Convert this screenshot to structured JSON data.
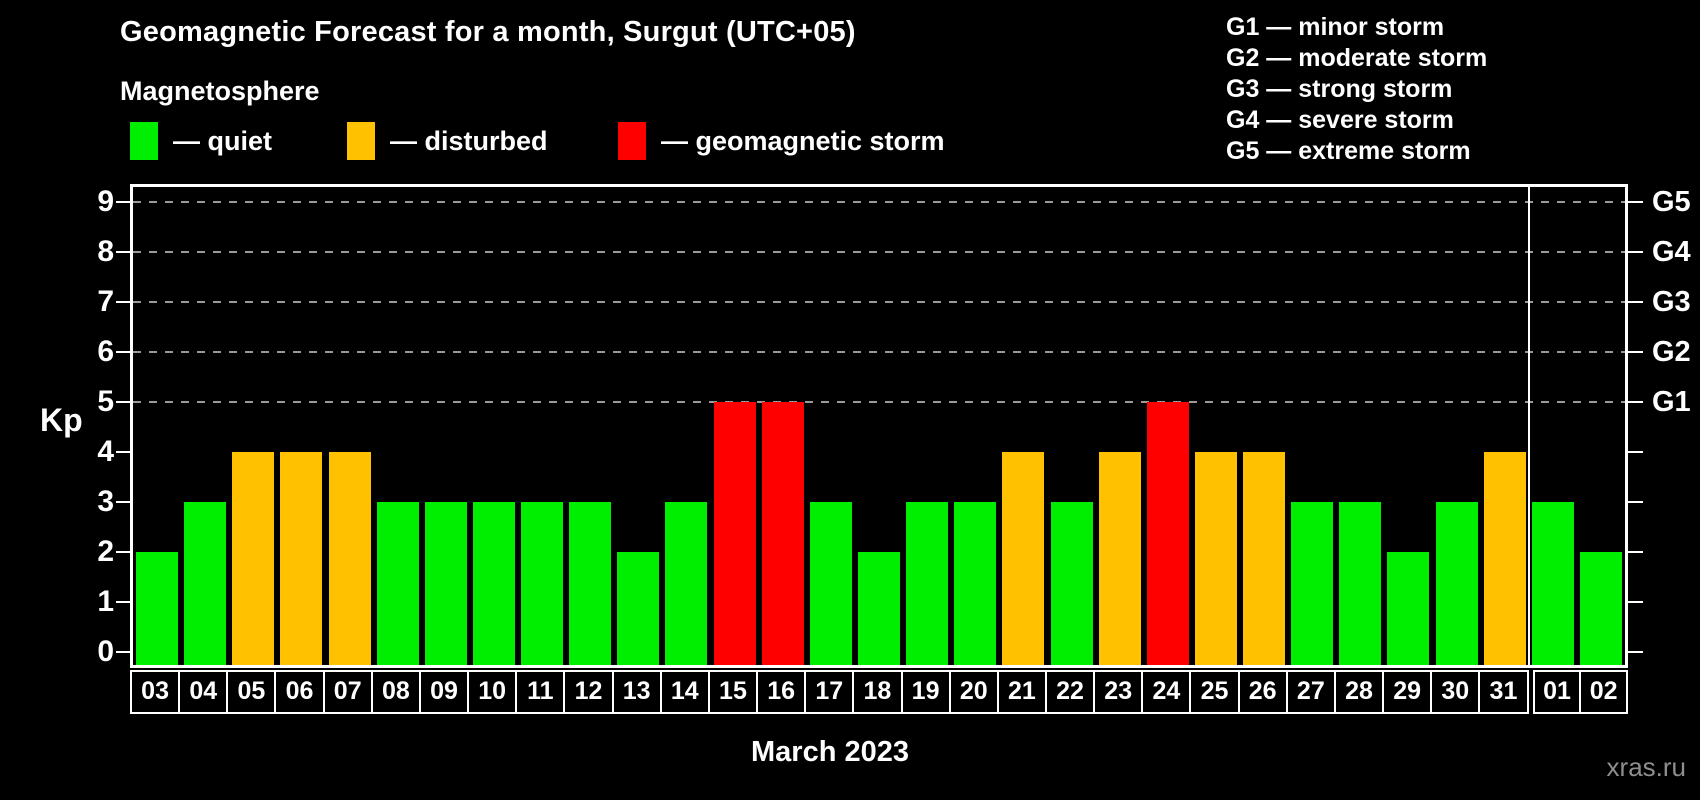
{
  "title": "Geomagnetic Forecast for a month, Surgut (UTC+05)",
  "subtitle": "Magnetosphere",
  "legend": {
    "items": [
      {
        "name": "quiet",
        "label": "— quiet",
        "color": "#00ef00"
      },
      {
        "name": "disturbed",
        "label": "— disturbed",
        "color": "#ffc100"
      },
      {
        "name": "storm",
        "label": "— geomagnetic storm",
        "color": "#ff0000"
      }
    ]
  },
  "g_scale_legend": [
    "G1 — minor storm",
    "G2 — moderate storm",
    "G3 — strong storm",
    "G4 — severe storm",
    "G5 — extreme storm"
  ],
  "watermark": "xras.ru",
  "chart_data": {
    "type": "bar",
    "title": "Geomagnetic Forecast for a month, Surgut (UTC+05)",
    "xlabel": "March 2023",
    "ylabel": "Kp",
    "ylim": [
      0,
      9.4
    ],
    "grid": "dashed horizontal gridlines at Kp 5,6,7,8,9",
    "legend_position": "top-left",
    "categories": [
      "03",
      "04",
      "05",
      "06",
      "07",
      "08",
      "09",
      "10",
      "11",
      "12",
      "13",
      "14",
      "15",
      "16",
      "17",
      "18",
      "19",
      "20",
      "21",
      "22",
      "23",
      "24",
      "25",
      "26",
      "27",
      "28",
      "29",
      "30",
      "31",
      "01",
      "02"
    ],
    "values": [
      2,
      3,
      4,
      4,
      4,
      3,
      3,
      3,
      3,
      3,
      2,
      3,
      5,
      5,
      3,
      2,
      3,
      3,
      4,
      3,
      4,
      5,
      4,
      4,
      3,
      3,
      2,
      3,
      4,
      3,
      2
    ],
    "statuses": [
      "quiet",
      "quiet",
      "disturbed",
      "disturbed",
      "disturbed",
      "quiet",
      "quiet",
      "quiet",
      "quiet",
      "quiet",
      "quiet",
      "quiet",
      "storm",
      "storm",
      "quiet",
      "quiet",
      "quiet",
      "quiet",
      "disturbed",
      "quiet",
      "disturbed",
      "storm",
      "disturbed",
      "disturbed",
      "quiet",
      "quiet",
      "quiet",
      "quiet",
      "disturbed",
      "quiet",
      "quiet"
    ],
    "status_colors": {
      "quiet": "#00ef00",
      "disturbed": "#ffc100",
      "storm": "#ff0000"
    },
    "left_axis_ticks": [
      0,
      1,
      2,
      3,
      4,
      5,
      6,
      7,
      8,
      9
    ],
    "right_axis": {
      "labels": [
        "G1",
        "G2",
        "G3",
        "G4",
        "G5"
      ],
      "kp_positions": [
        5,
        6,
        7,
        8,
        9
      ]
    },
    "gridlines_kp": [
      5,
      6,
      7,
      8,
      9
    ],
    "month_separator_index": 29,
    "month_label": "March 2023"
  }
}
